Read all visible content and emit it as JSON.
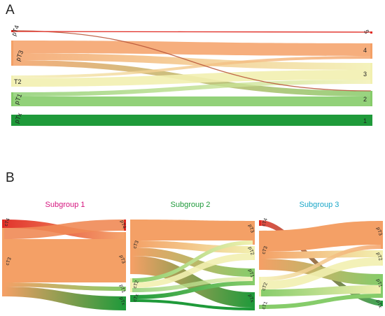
{
  "panels": {
    "a": {
      "letter": "A"
    },
    "b": {
      "letter": "B"
    }
  },
  "sankey_a": {
    "left_labels": [
      "pT4",
      "pT3",
      "T2",
      "pT1",
      "pTx"
    ],
    "right_labels": [
      "5",
      "4",
      "3",
      "2",
      "1"
    ]
  },
  "sankey_b": {
    "subgroups": [
      {
        "title": "Subgroup 1",
        "title_color": "#d6157f",
        "left_labels": [
          "cT4",
          "cT3"
        ],
        "right_labels": [
          "pT4",
          "pT3",
          "pT1",
          "pTx"
        ]
      },
      {
        "title": "Subgroup 2",
        "title_color": "#1f9a3a",
        "left_labels": [
          "cT3",
          "cT2",
          "cTx"
        ],
        "right_labels": [
          "pT3",
          "pT2",
          "pT1",
          "pTx"
        ]
      },
      {
        "title": "Subgroup 3",
        "title_color": "#1aa7c8",
        "left_labels": [
          "cT4",
          "cT3",
          "cT2",
          "cT1"
        ],
        "right_labels": [
          "pT3",
          "pT2",
          "pT1",
          "pTx"
        ]
      }
    ]
  },
  "colors": {
    "t4": "#e02a22",
    "t3": "#f4a066",
    "t2": "#f2f0b0",
    "t1": "#86cc6a",
    "tx": "#1f9a3a"
  }
}
